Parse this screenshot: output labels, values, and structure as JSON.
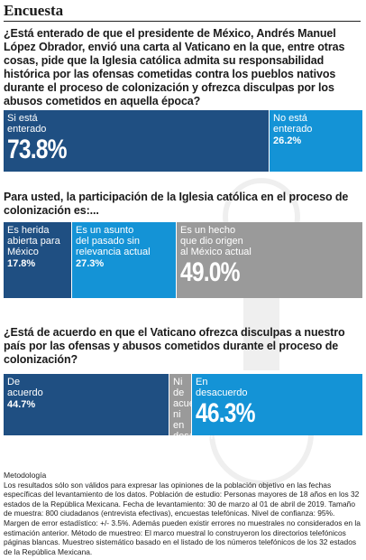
{
  "title": "Encuesta",
  "chart_data": [
    {
      "type": "bar",
      "stacked": true,
      "orientation": "horizontal",
      "question": "¿Está enterado de que el presidente de México, Andrés Manuel López Obrador, envió  una carta al Vaticano en la que, entre otras cosas, pide que la Iglesia católica admita su responsabilidad histórica por las ofensas cometidas contra los pueblos nativos durante el proceso de colonización y ofrezca disculpas por los abusos cometidos en aquella época?",
      "series": [
        {
          "name": "Si está\nenterado",
          "value": 73.8,
          "display": "73.8%",
          "color": "#1f4f82",
          "big": true
        },
        {
          "name": "No está\nenterado",
          "value": 26.2,
          "display": "26.2%",
          "color": "#1493d6",
          "big": false
        }
      ]
    },
    {
      "type": "bar",
      "stacked": true,
      "orientation": "horizontal",
      "question": "Para usted, la participación de la Iglesia católica en el proceso de colonización es:...",
      "series": [
        {
          "name": "Es herida\nabierta para\nMéxico",
          "value": 17.8,
          "display": "17.8%",
          "color": "#1f4f82",
          "big": false
        },
        {
          "name": "Es un asunto\ndel pasado sin\nrelevancia actual",
          "value": 27.3,
          "display": "27.3%",
          "color": "#1493d6",
          "big": false
        },
        {
          "name": "Es un hecho\nque dio origen\nal México actual",
          "value": 49.0,
          "display": "49.0%",
          "color": "#9a9a9a",
          "big": true
        }
      ]
    },
    {
      "type": "bar",
      "stacked": true,
      "orientation": "horizontal",
      "question": "¿Está de acuerdo en que el Vaticano ofrezca disculpas a nuestro país por las ofensas y abusos cometidos durante el proceso de colonización?",
      "series": [
        {
          "name": "De\nacuerdo",
          "value": 44.7,
          "display": "44.7%",
          "color": "#1f4f82",
          "big": false
        },
        {
          "name": "Ni de acuerdo\nni en desacuerdo",
          "value": 6.0,
          "display": "6.0%",
          "color": "#9a9a9a",
          "big": false
        },
        {
          "name": "En\ndesacuerdo",
          "value": 46.3,
          "display": "46.3%",
          "color": "#1493d6",
          "big": true
        }
      ]
    }
  ],
  "methodology": {
    "heading": "Metodología",
    "text": "Los resultados sólo son válidos para expresar las opiniones de la población objetivo en las fechas específicas del levantamiento de los datos. Población de estudio: Personas mayores de 18 años en los 32 estados de la República Mexicana. Fecha de levantamiento: 30 de marzo al 01 de abril de 2019. Tamaño de muestra: 800 ciudadanos (entrevista efectivas), encuestas telefónicas.  Nivel de confianza: 95%. Margen de error estadístico: +/- 3.5%. Además pueden existir errores no muestrales no considerados en la estimación anterior. Método de muestreo: El marco muestral lo construyeron los directorios telefónicos páginas blancas. Muestreo sistemático basado en el listado de los números telefónicos de los 32 estados de la República Mexicana."
  }
}
